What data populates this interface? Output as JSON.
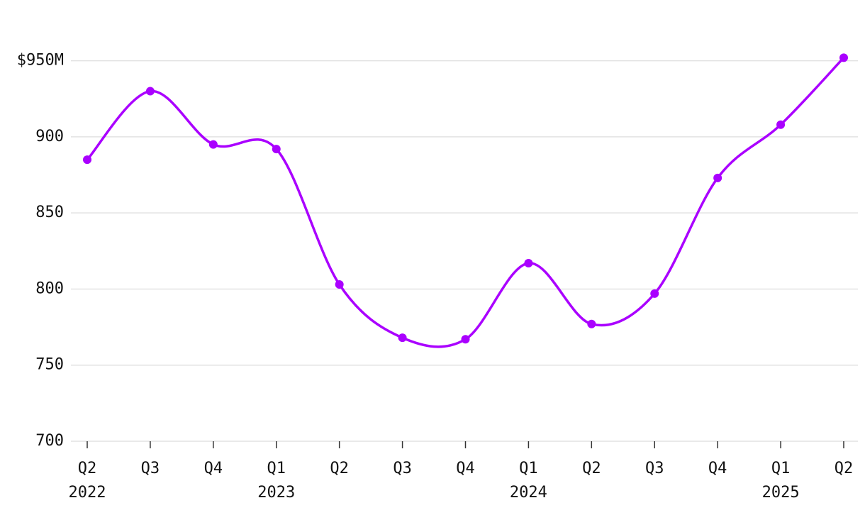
{
  "chart_data": {
    "type": "line",
    "categories": [
      "Q2",
      "Q3",
      "Q4",
      "Q1",
      "Q2",
      "Q3",
      "Q4",
      "Q1",
      "Q2",
      "Q3",
      "Q4",
      "Q1",
      "Q2"
    ],
    "year_labels": [
      "2022",
      null,
      null,
      "2023",
      null,
      null,
      null,
      "2024",
      null,
      null,
      null,
      "2025",
      null
    ],
    "series": [
      {
        "color": "#aa00ff",
        "values": [
          885,
          930,
          895,
          892,
          803,
          768,
          767,
          817,
          777,
          797,
          873,
          908,
          952
        ]
      }
    ],
    "ylim": [
      700,
      975
    ],
    "yticks": [
      700,
      750,
      800,
      850,
      900,
      {
        "value": 950,
        "label": "$950M"
      }
    ],
    "grid": true,
    "smooth": true
  }
}
